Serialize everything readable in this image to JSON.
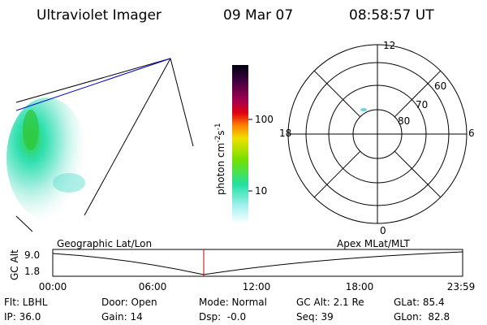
{
  "header": {
    "instrument": "Ultraviolet Imager",
    "date": "09 Mar 07",
    "time": "08:58:57 UT"
  },
  "colorbar": {
    "label": [
      "photon cm",
      "-2",
      "s",
      "-1"
    ],
    "ticks": [
      "100",
      "10"
    ]
  },
  "polar": {
    "mlt": [
      "12",
      "18",
      "6",
      "0"
    ],
    "mlat": [
      "60",
      "70",
      "80"
    ]
  },
  "timeline": {
    "title_left": "Geographic Lat/Lon",
    "title_right": "Apex MLat/MLT",
    "y_label": "GC Alt",
    "y_ticks": [
      "9.0",
      "1.8"
    ],
    "x_ticks": [
      "00:00",
      "06:00",
      "12:00",
      "18:00",
      "23:59"
    ]
  },
  "status": [
    [
      "Flt: LBHL",
      "Door: Open",
      "Mode: Normal",
      "GC Alt: 2.1 Re",
      "GLat: 85.4"
    ],
    [
      "IP: 36.0",
      "Gain: 14",
      "Dsp:  -0.0",
      "Seq: 39",
      "GLon:  82.8"
    ]
  ]
}
